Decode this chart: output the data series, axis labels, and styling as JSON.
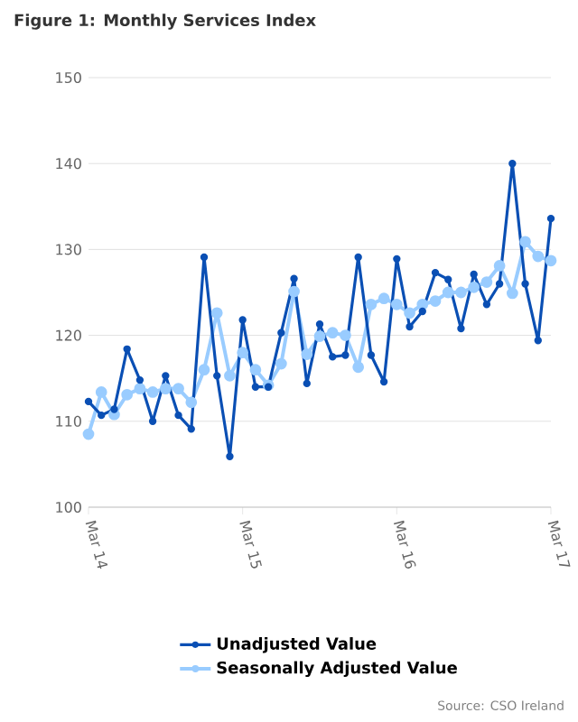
{
  "chart_data": {
    "type": "line",
    "title": "Figure 1: Monthly Services Index",
    "categories": [
      "Mar 14",
      null,
      null,
      null,
      null,
      null,
      null,
      null,
      null,
      null,
      null,
      null,
      "Mar 15",
      null,
      null,
      null,
      null,
      null,
      null,
      null,
      null,
      null,
      null,
      null,
      "Mar 16",
      null,
      null,
      null,
      null,
      null,
      null,
      null,
      null,
      null,
      null,
      null,
      "Mar 17"
    ],
    "series": [
      {
        "name": "Unadjusted Value",
        "color": "#0a4fb4",
        "values": [
          112.3,
          110.7,
          111.4,
          118.4,
          114.8,
          110.0,
          115.3,
          110.7,
          109.1,
          129.1,
          115.3,
          105.9,
          121.8,
          114.0,
          114.0,
          120.3,
          126.6,
          114.4,
          121.3,
          117.5,
          117.7,
          129.1,
          117.7,
          114.6,
          128.9,
          121.0,
          122.8,
          127.3,
          126.5,
          120.8,
          127.1,
          123.6,
          126.0,
          140.0,
          126.0,
          119.4,
          133.6
        ]
      },
      {
        "name": "Seasonally Adjusted Value",
        "color": "#99ccff",
        "values": [
          108.5,
          113.4,
          110.8,
          113.1,
          113.8,
          113.4,
          113.8,
          113.8,
          112.2,
          116.0,
          122.6,
          115.3,
          118.0,
          116.0,
          114.2,
          116.7,
          125.1,
          117.8,
          119.9,
          120.3,
          120.0,
          116.3,
          123.6,
          124.3,
          123.6,
          122.6,
          123.6,
          124.0,
          125.0,
          125.0,
          125.6,
          126.2,
          128.1,
          124.9,
          130.9,
          129.2,
          128.7
        ]
      }
    ],
    "ylim": [
      100,
      150
    ],
    "yticks": [
      100,
      110,
      120,
      130,
      140,
      150
    ],
    "grid": "y",
    "legend": "bottom",
    "marker": "circle",
    "line_style": "solid",
    "annotations": [
      "Source: CSO Ireland"
    ]
  }
}
